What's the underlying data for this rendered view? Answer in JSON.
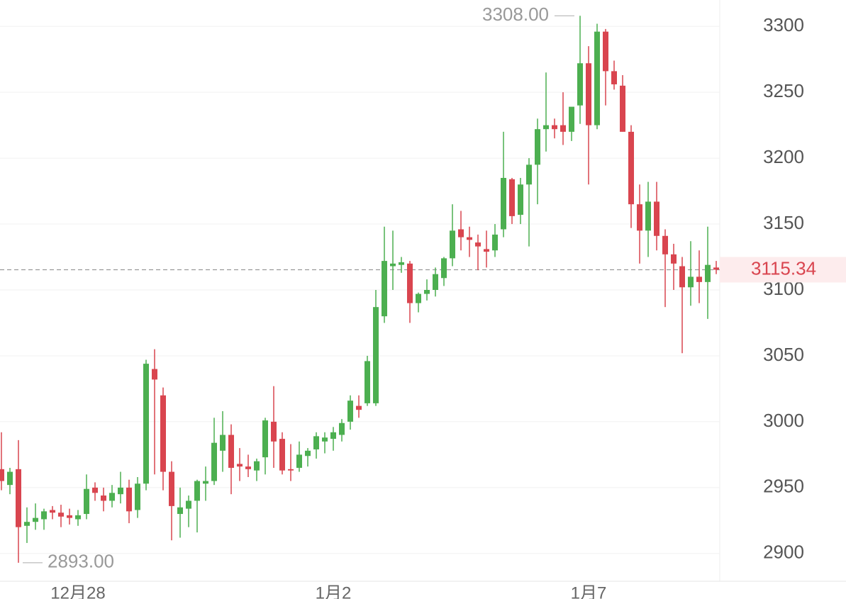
{
  "chart_data": {
    "type": "candlestick",
    "up_color": "#4caf50",
    "down_color": "#d9454f",
    "grid": true,
    "ylim": [
      2880,
      3320
    ],
    "yticks": [
      2900,
      2950,
      3000,
      3050,
      3100,
      3150,
      3200,
      3250,
      3300
    ],
    "categories": [
      null,
      null,
      null,
      null,
      null,
      null,
      null,
      null,
      null,
      "12月28",
      null,
      null,
      null,
      null,
      null,
      null,
      null,
      null,
      null,
      null,
      null,
      null,
      null,
      null,
      null,
      null,
      null,
      null,
      null,
      null,
      null,
      null,
      null,
      null,
      null,
      null,
      null,
      null,
      null,
      "1月2",
      null,
      null,
      null,
      null,
      null,
      null,
      null,
      null,
      null,
      null,
      null,
      null,
      null,
      null,
      null,
      null,
      null,
      null,
      null,
      null,
      null,
      null,
      null,
      null,
      null,
      null,
      null,
      null,
      null,
      "1月7",
      null,
      null,
      null,
      null,
      null,
      null,
      null,
      null,
      null,
      null,
      null,
      null,
      null,
      null,
      null
    ],
    "open": [
      2964,
      2952,
      2964,
      2921,
      2924,
      2926,
      2933,
      2931,
      2929,
      2926,
      2930,
      2950,
      2944,
      2940,
      2945,
      2950,
      2933,
      2953,
      3040,
      3020,
      2962,
      2930,
      2934,
      2940,
      2953,
      2955,
      2978,
      2990,
      2968,
      2966,
      2963,
      2973,
      3000,
      2987,
      2964,
      2965,
      2974,
      2979,
      2985,
      2987,
      2990,
      3000,
      3012,
      3014,
      3014,
      3080,
      3118,
      3119,
      3120,
      3090,
      3097,
      3100,
      3109,
      3124,
      3146,
      3140,
      3136,
      3131,
      3130,
      3146,
      3184,
      3157,
      3180,
      3195,
      3222,
      3225,
      3225,
      3220,
      3240,
      3272,
      3225,
      3296,
      3266,
      3255,
      3220,
      3165,
      3145,
      3167,
      3141,
      3127,
      3118,
      3102,
      3110,
      3106,
      3117
    ],
    "high": [
      2992,
      2965,
      2986,
      2935,
      2938,
      2934,
      2936,
      2937,
      2934,
      2933,
      2960,
      2954,
      2950,
      2952,
      2962,
      2956,
      2958,
      3047,
      3055,
      3026,
      2970,
      2950,
      2944,
      2956,
      2966,
      3003,
      3008,
      2998,
      2980,
      2975,
      2972,
      3003,
      3027,
      2992,
      2983,
      2985,
      2980,
      2992,
      2992,
      2996,
      3002,
      3020,
      3020,
      3050,
      3100,
      3148,
      3145,
      3125,
      3122,
      3098,
      3108,
      3117,
      3125,
      3165,
      3160,
      3148,
      3142,
      3145,
      3150,
      3220,
      3185,
      3185,
      3200,
      3230,
      3265,
      3230,
      3250,
      3235,
      3308,
      3285,
      3302,
      3298,
      3274,
      3263,
      3225,
      3180,
      3182,
      3182,
      3146,
      3135,
      3125,
      3137,
      3130,
      3148,
      3122
    ],
    "low": [
      2948,
      2945,
      2893,
      2908,
      2918,
      2918,
      2926,
      2920,
      2922,
      2921,
      2926,
      2940,
      2932,
      2935,
      2938,
      2923,
      2927,
      2948,
      2960,
      2948,
      2910,
      2912,
      2920,
      2916,
      2940,
      2952,
      2962,
      2945,
      2955,
      2958,
      2955,
      2960,
      2965,
      2960,
      2955,
      2962,
      2966,
      2972,
      2976,
      2978,
      2985,
      2994,
      3003,
      3012,
      3012,
      3075,
      3100,
      3113,
      3075,
      3083,
      3092,
      3095,
      3103,
      3118,
      3130,
      3125,
      3115,
      3117,
      3125,
      3140,
      3150,
      3150,
      3133,
      3165,
      3205,
      3215,
      3210,
      3213,
      3226,
      3180,
      3222,
      3240,
      3252,
      3220,
      3147,
      3120,
      3125,
      3130,
      3087,
      3100,
      3052,
      3088,
      3090,
      3078,
      3112
    ],
    "close": [
      2955,
      2962,
      2920,
      2924,
      2927,
      2932,
      2931,
      2928,
      2927,
      2929,
      2949,
      2946,
      2940,
      2946,
      2950,
      2932,
      2953,
      3044,
      3032,
      2962,
      2936,
      2935,
      2940,
      2955,
      2955,
      2984,
      2990,
      2965,
      2966,
      2964,
      2970,
      3001,
      2985,
      2963,
      2963,
      2975,
      2978,
      2989,
      2988,
      2992,
      2999,
      3016,
      3009,
      3046,
      3087,
      3122,
      3120,
      3121,
      3090,
      3097,
      3100,
      3112,
      3124,
      3145,
      3140,
      3138,
      3133,
      3129,
      3142,
      3185,
      3156,
      3180,
      3195,
      3222,
      3225,
      3222,
      3220,
      3239,
      3272,
      3225,
      3296,
      3266,
      3256,
      3220,
      3165,
      3145,
      3167,
      3141,
      3127,
      3120,
      3102,
      3110,
      3106,
      3119,
      3115.34
    ],
    "max_label": {
      "value": 3308,
      "label": "3308.00"
    },
    "min_label": {
      "value": 2893,
      "label": "2893.00"
    },
    "last_price": 3115.34
  }
}
